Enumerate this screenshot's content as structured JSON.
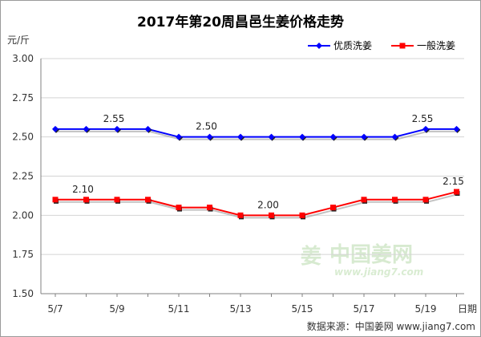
{
  "chart_data": {
    "type": "line",
    "title": "2017年第20周昌邑生姜价格走势",
    "ylabel": "元/斤",
    "xlabel": "日期",
    "ylim": [
      1.5,
      3.0
    ],
    "yticks": [
      "1.50",
      "1.75",
      "2.00",
      "2.25",
      "2.50",
      "2.75",
      "3.00"
    ],
    "x": [
      "5/7",
      "5/8",
      "5/9",
      "5/10",
      "5/11",
      "5/12",
      "5/13",
      "5/14",
      "5/15",
      "5/16",
      "5/17",
      "5/18",
      "5/19",
      "5/20"
    ],
    "xtick_labels": [
      "5/7",
      "5/9",
      "5/11",
      "5/13",
      "5/15",
      "5/17",
      "5/19"
    ],
    "legend_position": "top-right",
    "series": [
      {
        "name": "优质洗姜",
        "color": "#0000ff",
        "marker": "diamond",
        "values": [
          2.55,
          2.55,
          2.55,
          2.55,
          2.5,
          2.5,
          2.5,
          2.5,
          2.5,
          2.5,
          2.5,
          2.5,
          2.55,
          2.55
        ]
      },
      {
        "name": "一般洗姜",
        "color": "#ff0000",
        "marker": "square",
        "values": [
          2.1,
          2.1,
          2.1,
          2.1,
          2.05,
          2.05,
          2.0,
          2.0,
          2.0,
          2.05,
          2.1,
          2.1,
          2.1,
          2.15
        ]
      }
    ],
    "annotations": [
      {
        "series": 0,
        "index": 2,
        "text": "2.55"
      },
      {
        "series": 0,
        "index": 5,
        "text": "2.50"
      },
      {
        "series": 0,
        "index": 12,
        "text": "2.55"
      },
      {
        "series": 1,
        "index": 1,
        "text": "2.10"
      },
      {
        "series": 1,
        "index": 7,
        "text": "2.00"
      },
      {
        "series": 1,
        "index": 13,
        "text": "2.15"
      }
    ],
    "grid": "horizontal"
  },
  "watermark": {
    "text": "中国姜网",
    "url": "www.jiang7.com",
    "logo_glyph": "姜"
  },
  "source": "数据来源：中国姜网  www.jiang7.com"
}
